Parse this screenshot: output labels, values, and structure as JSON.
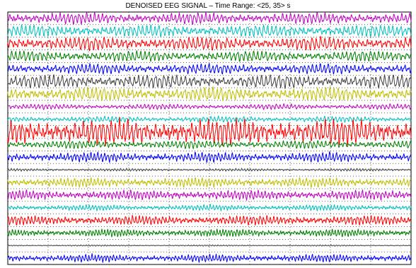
{
  "chart_data": {
    "type": "line",
    "title": "DENOISED EEG SIGNAL – Time Range: <25, 35> s",
    "xlabel": "",
    "ylabel": "",
    "xlim": [
      25,
      35
    ],
    "grid": true,
    "grid_style": "dotted",
    "axis_ticks_visible": false,
    "channel_count": 20,
    "series": [
      {
        "color": "#C000C0",
        "amplitude": 0.42,
        "dominant_freq_hz": 10.5,
        "appearance": "moderate alpha oscillation"
      },
      {
        "color": "#00BFBF",
        "amplitude": 0.45,
        "dominant_freq_hz": 10.0,
        "appearance": "moderate alpha oscillation"
      },
      {
        "color": "#FF0000",
        "amplitude": 0.5,
        "dominant_freq_hz": 9.5,
        "appearance": "strong alpha oscillation"
      },
      {
        "color": "#008000",
        "amplitude": 0.4,
        "dominant_freq_hz": 10.0,
        "appearance": "moderate oscillation"
      },
      {
        "color": "#0000FF",
        "amplitude": 0.38,
        "dominant_freq_hz": 10.5,
        "appearance": "moderate oscillation"
      },
      {
        "color": "#404040",
        "amplitude": 0.5,
        "dominant_freq_hz": 9.5,
        "appearance": "strong alpha oscillation"
      },
      {
        "color": "#BFBF00",
        "amplitude": 0.5,
        "dominant_freq_hz": 10.0,
        "appearance": "strong alpha oscillation"
      },
      {
        "color": "#C000C0",
        "amplitude": 0.2,
        "dominant_freq_hz": 11.0,
        "appearance": "low amplitude"
      },
      {
        "color": "#00BFBF",
        "amplitude": 0.22,
        "dominant_freq_hz": 11.0,
        "appearance": "low amplitude"
      },
      {
        "color": "#FF0000",
        "amplitude": 0.95,
        "dominant_freq_hz": 10.0,
        "appearance": "high amplitude bursts"
      },
      {
        "color": "#008000",
        "amplitude": 0.3,
        "dominant_freq_hz": 10.5,
        "appearance": "moderate oscillation"
      },
      {
        "color": "#0000FF",
        "amplitude": 0.35,
        "dominant_freq_hz": 12.0,
        "appearance": "moderate oscillation with spikes"
      },
      {
        "color": "#404040",
        "amplitude": 0.1,
        "dominant_freq_hz": 14.0,
        "appearance": "nearly flat"
      },
      {
        "color": "#BFBF00",
        "amplitude": 0.35,
        "dominant_freq_hz": 12.0,
        "appearance": "moderate oscillation"
      },
      {
        "color": "#C000C0",
        "amplitude": 0.35,
        "dominant_freq_hz": 12.0,
        "appearance": "moderate oscillation"
      },
      {
        "color": "#00BFBF",
        "amplitude": 0.22,
        "dominant_freq_hz": 13.0,
        "appearance": "low amplitude"
      },
      {
        "color": "#FF0000",
        "amplitude": 0.35,
        "dominant_freq_hz": 12.0,
        "appearance": "moderate oscillation"
      },
      {
        "color": "#008000",
        "amplitude": 0.28,
        "dominant_freq_hz": 14.0,
        "appearance": "low-moderate, high frequency"
      },
      {
        "color": "#404040",
        "amplitude": 0.05,
        "dominant_freq_hz": 15.0,
        "appearance": "nearly flat"
      },
      {
        "color": "#0000FF",
        "amplitude": 0.28,
        "dominant_freq_hz": 13.0,
        "appearance": "low-moderate oscillation"
      }
    ]
  }
}
